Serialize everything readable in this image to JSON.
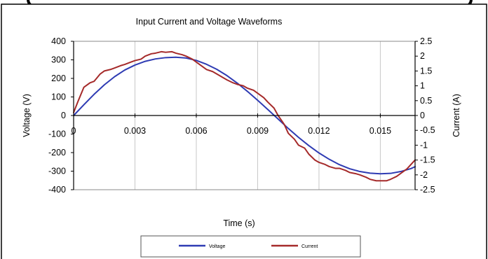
{
  "chart_data": {
    "type": "line",
    "title": "Input Current and Voltage Waveforms",
    "xlabel": "Time (s)",
    "ylabel": "Voltage (V)",
    "y2label": "Current (A)",
    "xlim": [
      0,
      0.0167
    ],
    "ylim": [
      -400,
      400
    ],
    "y2lim": [
      -2.5,
      2.5
    ],
    "x_ticks": [
      "0",
      "0.003",
      "0.006",
      "0.009",
      "0.012",
      "0.015"
    ],
    "y_ticks": [
      "400",
      "300",
      "200",
      "100",
      "0",
      "-100",
      "-200",
      "-300",
      "-400"
    ],
    "y2_ticks": [
      "2.5",
      "2",
      "1.5",
      "1",
      "0.5",
      "0",
      "-0.5",
      "-1",
      "-1.5",
      "-2",
      "-2.5"
    ],
    "grid": "vertical",
    "legend_position": "bottom",
    "series": [
      {
        "name": "Voltage",
        "axis": "left",
        "color": "#2e3bb3",
        "x": [
          0,
          0.0005,
          0.001,
          0.0015,
          0.002,
          0.0025,
          0.003,
          0.0035,
          0.004,
          0.0045,
          0.005,
          0.0055,
          0.006,
          0.0065,
          0.007,
          0.0075,
          0.008,
          0.0085,
          0.009,
          0.0095,
          0.01,
          0.0105,
          0.011,
          0.0115,
          0.012,
          0.0125,
          0.013,
          0.0135,
          0.014,
          0.0145,
          0.015,
          0.0155,
          0.016,
          0.0165,
          0.0167
        ],
        "values": [
          0,
          58,
          114,
          165,
          209,
          245,
          272,
          292,
          305,
          312,
          314,
          310,
          297,
          276,
          249,
          215,
          175,
          130,
          82,
          32,
          -19,
          -70,
          -118,
          -162,
          -202,
          -236,
          -265,
          -287,
          -302,
          -311,
          -314,
          -312,
          -302,
          -286,
          -276
        ]
      },
      {
        "name": "Current",
        "axis": "right",
        "color": "#a52a2a",
        "x": [
          0,
          0.0002,
          0.0005,
          0.0008,
          0.001,
          0.0013,
          0.0015,
          0.0018,
          0.002,
          0.0023,
          0.0025,
          0.0028,
          0.003,
          0.0033,
          0.0035,
          0.0038,
          0.004,
          0.0043,
          0.0045,
          0.0048,
          0.005,
          0.0053,
          0.0055,
          0.0058,
          0.006,
          0.0063,
          0.0065,
          0.0068,
          0.007,
          0.0073,
          0.0075,
          0.0078,
          0.008,
          0.0083,
          0.0085,
          0.0088,
          0.009,
          0.0093,
          0.0095,
          0.0098,
          0.01,
          0.0103,
          0.0105,
          0.0108,
          0.011,
          0.0113,
          0.0115,
          0.0118,
          0.012,
          0.0123,
          0.0125,
          0.0128,
          0.013,
          0.0133,
          0.0135,
          0.0138,
          0.014,
          0.0143,
          0.0145,
          0.0148,
          0.015,
          0.0153,
          0.0155,
          0.0158,
          0.016,
          0.0163,
          0.0165,
          0.0167
        ],
        "values": [
          0.1,
          0.45,
          0.95,
          1.1,
          1.15,
          1.4,
          1.5,
          1.55,
          1.6,
          1.68,
          1.72,
          1.8,
          1.85,
          1.9,
          2.0,
          2.08,
          2.1,
          2.15,
          2.13,
          2.15,
          2.1,
          2.05,
          2.0,
          1.9,
          1.8,
          1.65,
          1.55,
          1.48,
          1.4,
          1.28,
          1.2,
          1.1,
          1.05,
          1.0,
          0.92,
          0.85,
          0.75,
          0.6,
          0.45,
          0.25,
          0.0,
          -0.3,
          -0.6,
          -0.8,
          -1.0,
          -1.1,
          -1.3,
          -1.5,
          -1.58,
          -1.65,
          -1.72,
          -1.78,
          -1.78,
          -1.85,
          -1.92,
          -1.96,
          -2.0,
          -2.08,
          -2.15,
          -2.2,
          -2.2,
          -2.2,
          -2.15,
          -2.05,
          -1.95,
          -1.8,
          -1.65,
          -1.5
        ]
      }
    ]
  }
}
